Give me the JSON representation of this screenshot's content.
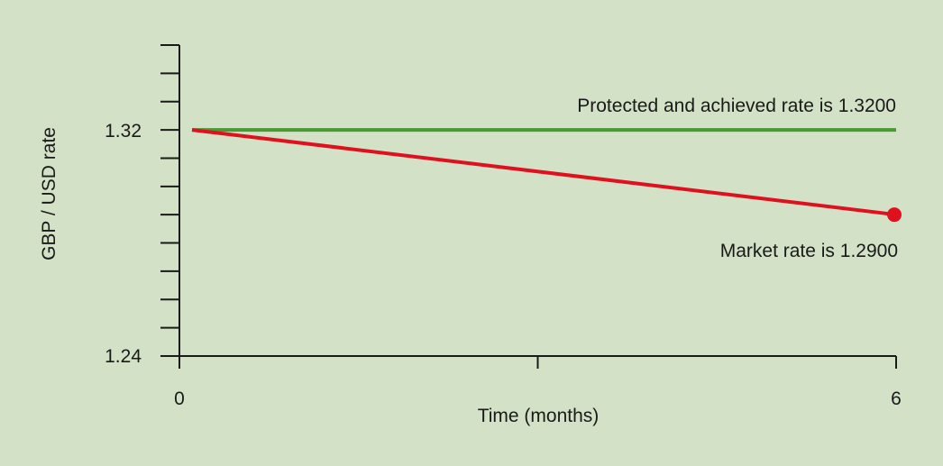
{
  "chart_data": {
    "type": "line",
    "xlabel": "Time (months)",
    "ylabel": "GBP / USD rate",
    "xlim": [
      0,
      6
    ],
    "ylim": [
      1.24,
      1.35
    ],
    "x_ticks": [
      "0",
      "6"
    ],
    "y_ticks": [
      "1.24",
      "1.32"
    ],
    "y_minor_step": 0.01,
    "series": [
      {
        "color": "#4a9a33",
        "x": [
          0,
          6
        ],
        "values": [
          1.32,
          1.32
        ]
      },
      {
        "color": "#e0101e",
        "x": [
          0,
          6
        ],
        "values": [
          1.32,
          1.29
        ],
        "end_marker": true
      }
    ],
    "annotations": [
      {
        "text": "Protected and achieved rate is 1.3200"
      },
      {
        "text": "Market rate is 1.2900"
      }
    ]
  }
}
